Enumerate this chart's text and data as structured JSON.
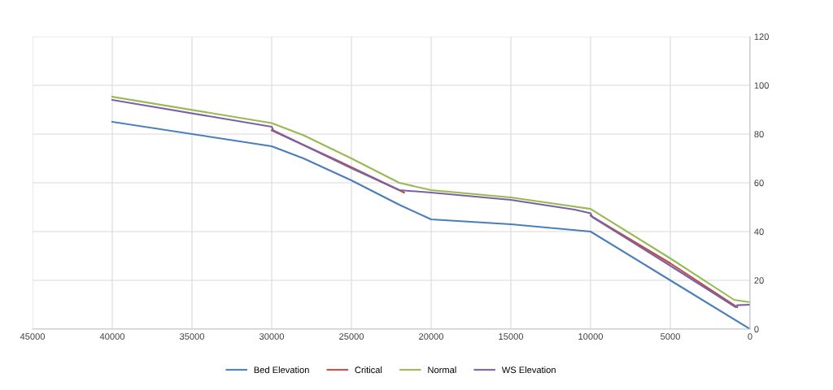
{
  "chart_data": {
    "type": "line",
    "xlim": [
      45000,
      0
    ],
    "xticks": [
      45000,
      40000,
      35000,
      30000,
      25000,
      20000,
      15000,
      10000,
      5000,
      0
    ],
    "ylim": [
      0,
      120
    ],
    "yticks": [
      0,
      20,
      40,
      60,
      80,
      100,
      120
    ],
    "grid": true,
    "legend": "bottom",
    "marker": "none",
    "line_style": "solid",
    "series": [
      {
        "name": "Bed Elevation",
        "color": "#4a7ebb",
        "x": [
          40000,
          30000,
          28000,
          25000,
          22000,
          20000,
          15000,
          10000,
          5000,
          0
        ],
        "values": [
          85,
          75,
          70,
          61,
          51,
          45,
          43,
          40,
          20,
          0
        ]
      },
      {
        "name": "Critical",
        "color": "#be4b48",
        "x": [
          30000,
          26000,
          22000,
          21700,
          15000,
          10000,
          5000,
          800
        ],
        "values": [
          81.5,
          69.5,
          57,
          56,
          null,
          46.5,
          27,
          9
        ]
      },
      {
        "name": "Normal",
        "color": "#98b954",
        "x": [
          40000,
          30000,
          28000,
          25000,
          22000,
          20000,
          15000,
          10000,
          5000,
          1000,
          0
        ],
        "values": [
          95.3,
          84.5,
          79.5,
          70,
          60,
          57,
          54,
          49.3,
          29,
          12,
          11
        ]
      },
      {
        "name": "WS Elevation",
        "color": "#7d60a0",
        "x": [
          40000,
          30000,
          29900,
          25000,
          22000,
          20000,
          15000,
          11000,
          10000,
          9900,
          5000,
          900,
          800,
          0
        ],
        "values": [
          94,
          83,
          81.5,
          66,
          57,
          56,
          53,
          49,
          47.5,
          46,
          26,
          9,
          9.8,
          10
        ]
      }
    ]
  }
}
